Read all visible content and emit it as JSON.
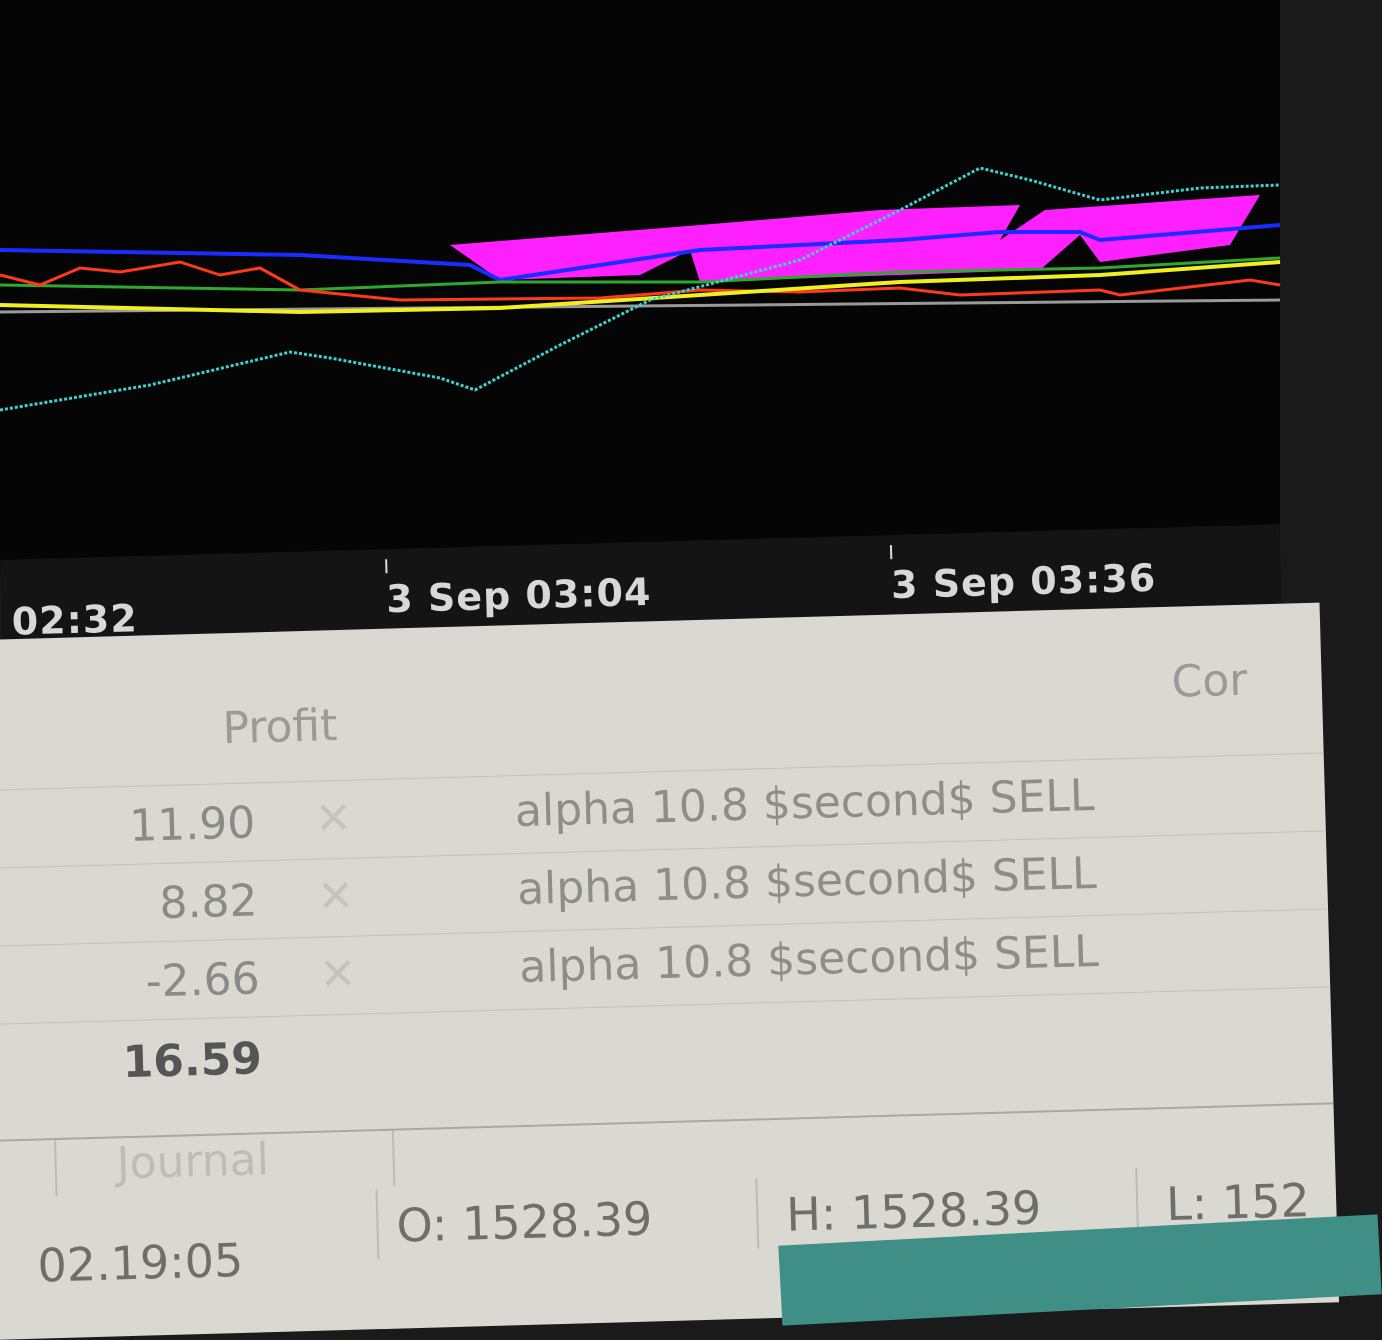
{
  "chart": {
    "background": "#050505",
    "line_colors": {
      "blue": "#1a2cff",
      "red": "#ff3a1a",
      "green": "#2fa82f",
      "yellow": "#f0f020",
      "cyan": "#3fd0d0",
      "magenta": "#ff20ff",
      "level": "#9a9a9a"
    }
  },
  "time_axis": {
    "ticks": [
      "02:32",
      "3 Sep 03:04",
      "3 Sep 03:36"
    ]
  },
  "table": {
    "headers": {
      "profit": "Profit",
      "comment": "Cor"
    },
    "rows": [
      {
        "profit": "11.90",
        "close_icon": "close-icon",
        "comment": "alpha 10.8 $second$ SELL"
      },
      {
        "profit": "8.82",
        "close_icon": "close-icon",
        "comment": "alpha 10.8 $second$ SELL"
      },
      {
        "profit": "-2.66",
        "close_icon": "close-icon",
        "comment": "alpha 10.8 $second$ SELL"
      }
    ],
    "total": "16.59"
  },
  "tabs": [
    {
      "label": "Journal"
    }
  ],
  "status_bar": {
    "time": "02.19:05",
    "open": "O: 1528.39",
    "high": "H: 1528.39",
    "low": "L: 152"
  }
}
